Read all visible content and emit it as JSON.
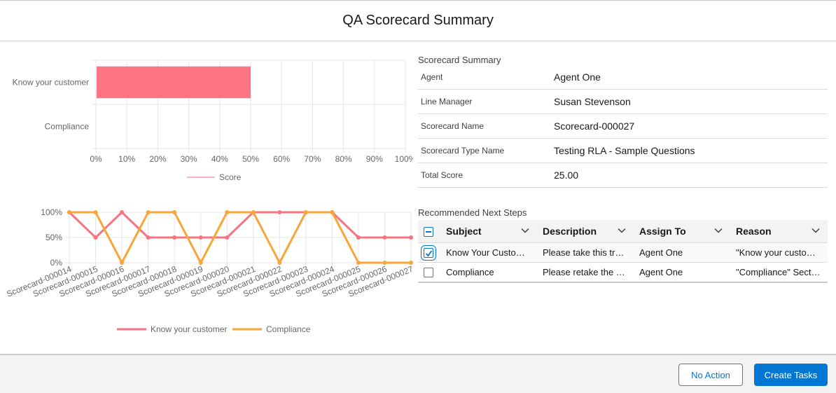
{
  "modal": {
    "title": "QA Scorecard Summary"
  },
  "chart_data": [
    {
      "type": "bar",
      "orientation": "horizontal",
      "categories": [
        "Know your customer",
        "Compliance"
      ],
      "series": [
        {
          "name": "Score",
          "values": [
            50,
            0
          ]
        }
      ],
      "xlim": [
        0,
        100
      ],
      "xticks": [
        "0%",
        "10%",
        "20%",
        "30%",
        "40%",
        "50%",
        "60%",
        "70%",
        "80%",
        "90%",
        "100%"
      ],
      "legend": "bottom",
      "colors": {
        "Score": "#ff7482"
      }
    },
    {
      "type": "line",
      "categories": [
        "Scorecard-000014",
        "Scorecard-000015",
        "Scorecard-000016",
        "Scorecard-000017",
        "Scorecard-000018",
        "Scorecard-000019",
        "Scorecard-000020",
        "Scorecard-000021",
        "Scorecard-000022",
        "Scorecard-000023",
        "Scorecard-000024",
        "Scorecard-000025",
        "Scorecard-000026",
        "Scorecard-000027"
      ],
      "series": [
        {
          "name": "Know your customer",
          "values": [
            100,
            50,
            100,
            50,
            50,
            50,
            50,
            100,
            100,
            100,
            100,
            50,
            50,
            50
          ]
        },
        {
          "name": "Compliance",
          "values": [
            100,
            100,
            0,
            100,
            100,
            0,
            100,
            100,
            0,
            100,
            100,
            0,
            0,
            0
          ]
        }
      ],
      "ylim": [
        0,
        100
      ],
      "yticks": [
        "0%",
        "50%",
        "100%"
      ],
      "legend": "bottom",
      "colors": {
        "Know your customer": "#f77582",
        "Compliance": "#f8a63a"
      }
    }
  ],
  "summary": {
    "title": "Scorecard Summary",
    "rows": [
      {
        "label": "Agent",
        "value": "Agent One"
      },
      {
        "label": "Line Manager",
        "value": "Susan Stevenson"
      },
      {
        "label": "Scorecard Name",
        "value": "Scorecard-000027"
      },
      {
        "label": "Scorecard Type Name",
        "value": "Testing RLA - Sample Questions"
      },
      {
        "label": "Total Score",
        "value": "25.00"
      }
    ]
  },
  "steps": {
    "title": "Recommended Next Steps",
    "columns": [
      "Subject",
      "Description",
      "Assign To",
      "Reason"
    ],
    "rows": [
      {
        "subject": "Know Your Customer",
        "description": "Please take this training",
        "assign_to": "Agent One",
        "reason": "\"Know your customer\" Section",
        "checked": true
      },
      {
        "subject": "Compliance",
        "description": "Please retake the course",
        "assign_to": "Agent One",
        "reason": "\"Compliance\" Section",
        "checked": false
      }
    ]
  },
  "footer": {
    "no_action_label": "No Action",
    "create_tasks_label": "Create Tasks"
  }
}
